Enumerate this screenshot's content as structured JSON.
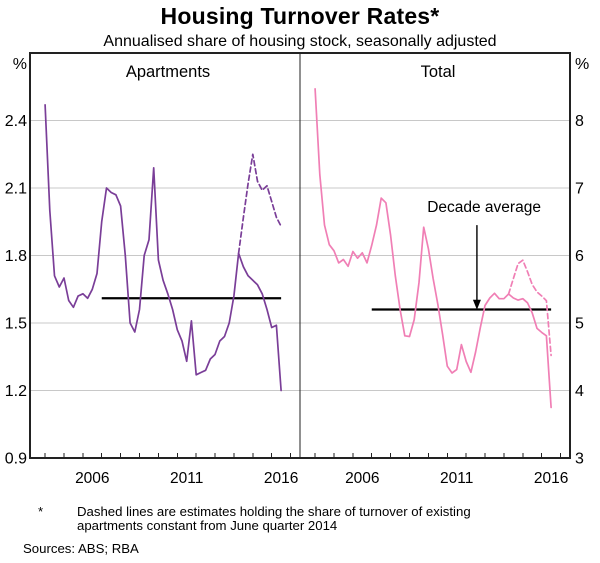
{
  "title": "Housing Turnover Rates*",
  "subtitle": "Annualised share of housing stock, seasonally adjusted",
  "footnote": {
    "marker": "*",
    "line1": "Dashed lines are estimates holding the share of turnover of existing",
    "line2": "apartments constant from June quarter 2014"
  },
  "sources": "Sources: ABS; RBA",
  "colors": {
    "apartments_line": "#7a3e98",
    "total_line": "#f07fb5",
    "grid": "#c8c8c8",
    "frame": "#222222",
    "average_line": "#000000",
    "text": "#000000"
  },
  "chart_data": [
    {
      "type": "line",
      "panel": "left",
      "title": "Apartments",
      "unit_label": "%",
      "ylim": [
        0.9,
        2.7
      ],
      "yticks": [
        0.9,
        1.2,
        1.5,
        1.8,
        2.1,
        2.4
      ],
      "xlim": [
        2003.2,
        2017.5
      ],
      "xtick_years_labeled": [
        2006,
        2011,
        2016
      ],
      "grid": true,
      "decade_average": {
        "value": 1.61,
        "from": 2007.0,
        "to": 2016.5
      },
      "series": [
        {
          "name": "Apartments",
          "style": "solid",
          "x_start": 2004.0,
          "x_step": 0.25,
          "values": [
            2.47,
            2.0,
            1.71,
            1.66,
            1.7,
            1.6,
            1.57,
            1.62,
            1.63,
            1.61,
            1.65,
            1.72,
            1.95,
            2.1,
            2.08,
            2.07,
            2.02,
            1.8,
            1.5,
            1.46,
            1.56,
            1.8,
            1.87,
            2.19,
            1.78,
            1.69,
            1.63,
            1.56,
            1.47,
            1.42,
            1.33,
            1.51,
            1.27,
            1.28,
            1.29,
            1.34,
            1.36,
            1.42,
            1.44,
            1.5,
            1.62,
            1.81,
            1.75,
            1.71,
            1.69,
            1.67,
            1.63,
            1.56,
            1.48,
            1.49,
            1.2
          ]
        },
        {
          "name": "Apartments estimate (dashed)",
          "style": "dashed",
          "x_start": 2014.25,
          "x_step": 0.25,
          "values": [
            1.81,
            1.97,
            2.12,
            2.25,
            2.13,
            2.09,
            2.11,
            2.04,
            1.97,
            1.93
          ]
        }
      ]
    },
    {
      "type": "line",
      "panel": "right",
      "title": "Total",
      "unit_label": "%",
      "ylim": [
        3,
        9
      ],
      "yticks": [
        3,
        4,
        5,
        6,
        7,
        8
      ],
      "xlim": [
        2003.2,
        2017.5
      ],
      "xtick_years_labeled": [
        2006,
        2011,
        2016
      ],
      "grid": true,
      "decade_average": {
        "value": 5.2,
        "from": 2007.0,
        "to": 2016.5
      },
      "annotation": {
        "label": "Decade average",
        "label_x": 2012.95,
        "label_y": 6.72,
        "arrow_x": 2012.57,
        "arrow_from": 6.45,
        "arrow_to": 5.33
      },
      "series": [
        {
          "name": "Total",
          "style": "solid",
          "x_start": 2004.0,
          "x_step": 0.25,
          "values": [
            8.47,
            7.2,
            6.45,
            6.16,
            6.07,
            5.89,
            5.94,
            5.84,
            6.06,
            5.96,
            6.04,
            5.89,
            6.15,
            6.45,
            6.85,
            6.78,
            6.3,
            5.7,
            5.2,
            4.81,
            4.8,
            5.05,
            5.6,
            6.42,
            6.1,
            5.66,
            5.28,
            4.83,
            4.36,
            4.26,
            4.31,
            4.68,
            4.43,
            4.27,
            4.57,
            4.93,
            5.26,
            5.37,
            5.44,
            5.36,
            5.36,
            5.43,
            5.37,
            5.34,
            5.36,
            5.3,
            5.15,
            4.92,
            4.86,
            4.81,
            3.75
          ]
        },
        {
          "name": "Total estimate (dashed)",
          "style": "dashed",
          "x_start": 2014.25,
          "x_step": 0.25,
          "values": [
            5.43,
            5.66,
            5.88,
            5.93,
            5.76,
            5.57,
            5.46,
            5.4,
            5.33,
            4.52
          ]
        }
      ]
    }
  ]
}
